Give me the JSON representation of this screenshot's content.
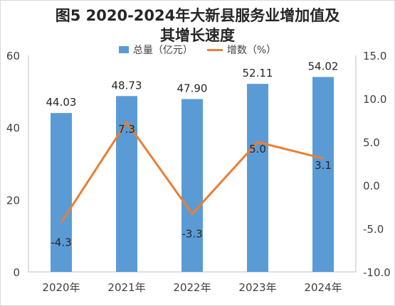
{
  "chart_data": {
    "type": "bar",
    "title_line1": "图5  2020-2024年大新县服务业增加值及",
    "title_line2": "其增长速度",
    "categories": [
      "2020年",
      "2021年",
      "2022年",
      "2023年",
      "2024年"
    ],
    "series": [
      {
        "name": "总量（亿元）",
        "type": "bar",
        "axis": "left",
        "color": "#5b9bd5",
        "values": [
          44.03,
          48.73,
          47.9,
          52.11,
          54.02
        ],
        "labels": [
          "44.03",
          "48.73",
          "47.90",
          "52.11",
          "54.02"
        ]
      },
      {
        "name": "增数（%）",
        "type": "line",
        "axis": "right",
        "color": "#ed7d31",
        "values": [
          -4.3,
          7.3,
          -3.3,
          5.0,
          3.1
        ],
        "labels": [
          "-4.3",
          "7.3",
          "-3.3",
          "5.0",
          "3.1"
        ]
      }
    ],
    "y_left": {
      "min": 0,
      "max": 60,
      "ticks": [
        0,
        20,
        40,
        60
      ],
      "tick_labels": [
        "0",
        "20",
        "40",
        "60"
      ]
    },
    "y_right": {
      "min": -10,
      "max": 15,
      "ticks": [
        -10,
        -5,
        0,
        5,
        10,
        15
      ],
      "tick_labels": [
        "-10.0",
        "-5.0",
        "0.0",
        "5.0",
        "10.0",
        "15.0"
      ]
    },
    "grid": false,
    "legend_position": "top"
  }
}
